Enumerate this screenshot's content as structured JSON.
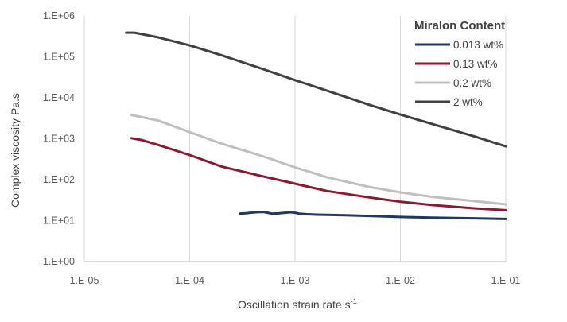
{
  "chart_data": {
    "type": "line",
    "title": "",
    "xlabel": "Oscillation strain rate s",
    "xlabel_superscript": "-1",
    "ylabel": "Complex viscosity Pa.s",
    "x_scale": "log",
    "y_scale": "log",
    "xlim": [
      1e-05,
      0.1
    ],
    "ylim": [
      1,
      1000000
    ],
    "x_ticks": [
      1e-05,
      0.0001,
      0.001,
      0.01,
      0.1
    ],
    "x_tick_labels": [
      "1.E-05",
      "1.E-04",
      "1.E-03",
      "1.E-02",
      "1.E-01"
    ],
    "y_ticks": [
      1,
      10,
      100,
      1000,
      10000,
      100000,
      1000000
    ],
    "y_tick_labels": [
      "1.E+00",
      "1.E+01",
      "1.E+02",
      "1.E+03",
      "1.E+04",
      "1.E+05",
      "1.E+06"
    ],
    "grid": "vertical major gridlines",
    "legend": {
      "title": "Miralon Content",
      "placement": "top-right"
    },
    "series": [
      {
        "name": "0.013 wt%",
        "color": "#1f3864",
        "x": [
          0.0003,
          0.00035,
          0.0004,
          0.00045,
          0.0005,
          0.00055,
          0.0006,
          0.0007,
          0.0008,
          0.0009,
          0.001,
          0.0011,
          0.0013,
          0.0016,
          0.002,
          0.003,
          0.005,
          0.01,
          0.02,
          0.05,
          0.1
        ],
        "y": [
          14.8,
          15.2,
          15.8,
          16.2,
          16.3,
          15.6,
          14.8,
          15.0,
          15.6,
          16.0,
          15.6,
          14.8,
          14.3,
          14.0,
          13.8,
          13.5,
          13.0,
          12.3,
          11.8,
          11.4,
          11.0
        ]
      },
      {
        "name": "0.13 wt%",
        "color": "#8b1a2f",
        "x": [
          2.8e-05,
          3.5e-05,
          5e-05,
          0.0001,
          0.0002,
          0.0005,
          0.001,
          0.002,
          0.005,
          0.01,
          0.02,
          0.05,
          0.1
        ],
        "y": [
          1030,
          930,
          710,
          400,
          210,
          120,
          80,
          53,
          37,
          29,
          24,
          20,
          18
        ]
      },
      {
        "name": "0.2 wt%",
        "color": "#bfbfbf",
        "x": [
          2.8e-05,
          5e-05,
          0.0001,
          0.0002,
          0.0005,
          0.001,
          0.002,
          0.005,
          0.01,
          0.02,
          0.05,
          0.1
        ],
        "y": [
          3800,
          2800,
          1450,
          760,
          370,
          200,
          115,
          67,
          49,
          38,
          30,
          25
        ]
      },
      {
        "name": "2 wt%",
        "color": "#404040",
        "x": [
          2.5e-05,
          3e-05,
          3.5e-05,
          5e-05,
          0.0001,
          0.0002,
          0.0005,
          0.001,
          0.002,
          0.005,
          0.01,
          0.02,
          0.05,
          0.1
        ],
        "y": [
          390000,
          390000,
          360000,
          300000,
          190000,
          110000,
          50000,
          27000,
          15000,
          6800,
          3900,
          2300,
          1150,
          650
        ]
      }
    ]
  }
}
